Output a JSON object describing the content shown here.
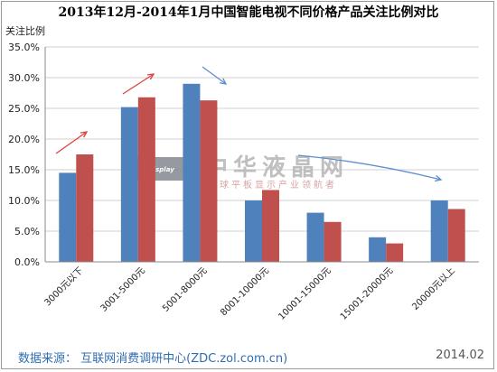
{
  "chart_data": {
    "type": "bar",
    "title": "2013年12月-2014年1月中国智能电视不同价格产品关注比例对比",
    "ylabel": "关注比例",
    "ylim": [
      0,
      35
    ],
    "yticks": [
      "0.0%",
      "5.0%",
      "10.0%",
      "15.0%",
      "20.0%",
      "25.0%",
      "30.0%",
      "35.0%"
    ],
    "categories": [
      "3000元以下",
      "3001-5000元",
      "5001-8000元",
      "8001-10000元",
      "10001-15000元",
      "15001-20000元",
      "20000元以上"
    ],
    "series": [
      {
        "color": "#4f81bd",
        "values": [
          14.5,
          25.2,
          29.0,
          10.0,
          8.0,
          4.0,
          10.0
        ]
      },
      {
        "color": "#c0504d",
        "values": [
          17.5,
          26.8,
          26.3,
          11.7,
          6.5,
          3.0,
          8.6
        ]
      }
    ],
    "grid": true,
    "legend": "none"
  },
  "watermark": {
    "main": "中华液晶网",
    "sub": "全球平板显示产业领航者",
    "logo": "FPDisplay"
  },
  "footer": {
    "source": "数据来源：  互联网消费调研中心(ZDC.zol.com.cn)",
    "date": "2014.02"
  },
  "colors": {
    "arrow_up": "#e04040",
    "arrow_down": "#5b8fd0"
  }
}
